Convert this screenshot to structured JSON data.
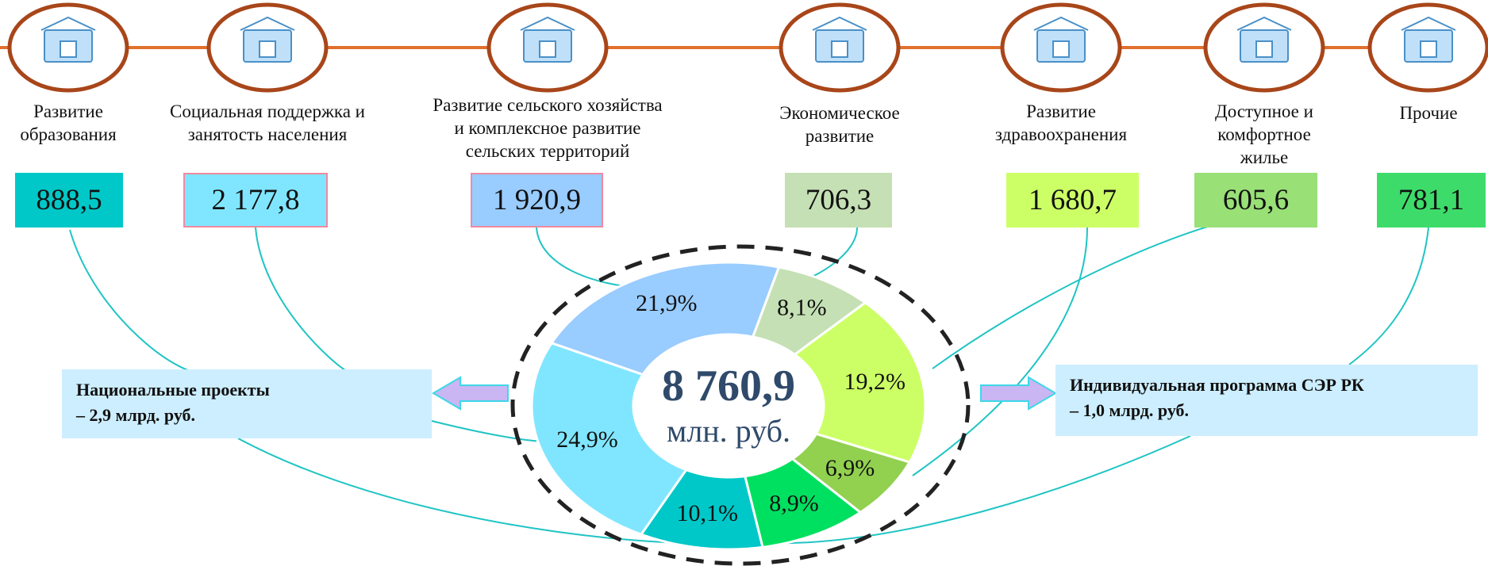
{
  "items": [
    {
      "label": "Развитие\nобразования",
      "amount": "888,5",
      "color": "#00c8c8"
    },
    {
      "label": "Социальная поддержка и\nзанятость населения",
      "amount": "2 177,8",
      "color": "#80e6ff"
    },
    {
      "label": "Развитие сельского хозяйства\nи комплексное развитие\nсельских территорий",
      "amount": "1 920,9",
      "color": "#99ccff"
    },
    {
      "label": "Экономическое\nразвитие",
      "amount": "706,3",
      "color": "#c5e0b4"
    },
    {
      "label": "Развитие\nздравоохранения",
      "amount": "1 680,7",
      "color": "#ccff66"
    },
    {
      "label": "Доступное и\nкомфортное\nжилье",
      "amount": "605,6",
      "color": "#99e077"
    },
    {
      "label": "Прочие",
      "amount": "781,1",
      "color": "#3ddc6a"
    }
  ],
  "chart_data": {
    "type": "pie",
    "values": [
      10.1,
      24.9,
      21.9,
      8.1,
      19.2,
      6.9,
      8.9
    ],
    "value_labels": [
      "10,1%",
      "24,9%",
      "21,9%",
      "8,1%",
      "19,2%",
      "6,9%",
      "8,9%"
    ],
    "colors": [
      "#00c8c8",
      "#80e6ff",
      "#99ccff",
      "#c5e0b4",
      "#ccff66",
      "#92d050",
      "#00e060"
    ]
  },
  "center": {
    "total": "8 760,9",
    "unit": "млн. руб."
  },
  "programs": [
    {
      "title": "Национальные проекты",
      "detail": "– 2,9 млрд. руб."
    },
    {
      "title": "Индивидуальная программа СЭР РК",
      "detail": "– 1,0 млрд. руб."
    }
  ]
}
